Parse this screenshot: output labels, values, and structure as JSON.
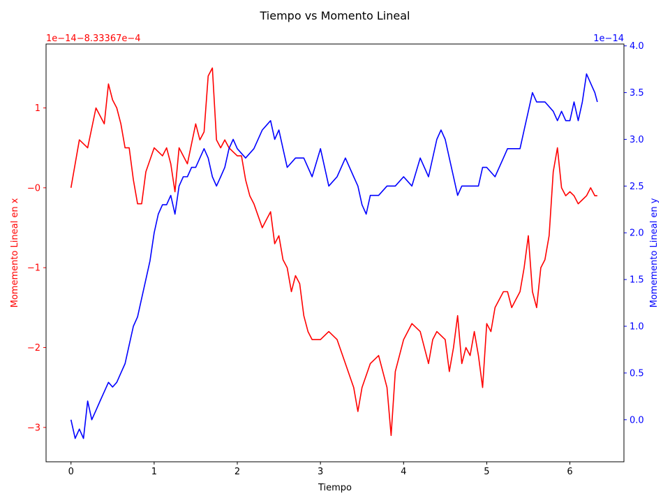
{
  "chart_data": {
    "type": "line",
    "title": "Tiempo vs Momento Lineal",
    "xlabel": "Tiempo",
    "xlim": [
      -0.3,
      6.65
    ],
    "x_ticks": [
      0,
      1,
      2,
      3,
      4,
      5,
      6
    ],
    "x_tick_labels": [
      "0",
      "1",
      "2",
      "3",
      "4",
      "5",
      "6"
    ],
    "grid": false,
    "axes": {
      "left": {
        "label": "Momemento Lineal en x",
        "color": "#ff0000",
        "offset_text": "1e−14−8.33367e−4",
        "ylim": [
          -3.43,
          1.8
        ],
        "ticks": [
          -3,
          -2,
          -1,
          0,
          1
        ],
        "tick_labels": [
          "−3",
          "−2",
          "−1",
          "−0",
          "1"
        ]
      },
      "right": {
        "label": "Momemento Lineal en y",
        "color": "#0000ff",
        "offset_text": "1e−14",
        "ylim": [
          -0.45,
          4.02
        ],
        "ticks": [
          0.0,
          0.5,
          1.0,
          1.5,
          2.0,
          2.5,
          3.0,
          3.5,
          4.0
        ],
        "tick_labels": [
          "0.0",
          "0.5",
          "1.0",
          "1.5",
          "2.0",
          "2.5",
          "3.0",
          "3.5",
          "4.0"
        ]
      }
    },
    "series": [
      {
        "axis": "left",
        "color": "#ff0000",
        "x": [
          0,
          0.1,
          0.2,
          0.3,
          0.4,
          0.45,
          0.5,
          0.55,
          0.6,
          0.65,
          0.7,
          0.75,
          0.8,
          0.85,
          0.9,
          1.0,
          1.1,
          1.15,
          1.2,
          1.25,
          1.3,
          1.4,
          1.5,
          1.55,
          1.6,
          1.65,
          1.7,
          1.75,
          1.8,
          1.85,
          1.9,
          1.95,
          2.0,
          2.05,
          2.1,
          2.15,
          2.2,
          2.3,
          2.35,
          2.4,
          2.45,
          2.5,
          2.55,
          2.6,
          2.65,
          2.7,
          2.75,
          2.8,
          2.85,
          2.9,
          3.0,
          3.1,
          3.2,
          3.3,
          3.4,
          3.45,
          3.5,
          3.6,
          3.7,
          3.75,
          3.8,
          3.85,
          3.9,
          4.0,
          4.1,
          4.2,
          4.3,
          4.35,
          4.4,
          4.5,
          4.55,
          4.6,
          4.65,
          4.7,
          4.75,
          4.8,
          4.85,
          4.9,
          4.95,
          5.0,
          5.05,
          5.1,
          5.15,
          5.2,
          5.25,
          5.3,
          5.35,
          5.4,
          5.45,
          5.5,
          5.55,
          5.6,
          5.65,
          5.7,
          5.75,
          5.8,
          5.85,
          5.9,
          5.95,
          6.0,
          6.05,
          6.1,
          6.15,
          6.2,
          6.25,
          6.3,
          6.33
        ],
        "y": [
          0.0,
          0.6,
          0.5,
          1.0,
          0.8,
          1.3,
          1.1,
          1.0,
          0.8,
          0.5,
          0.5,
          0.1,
          -0.2,
          -0.2,
          0.2,
          0.5,
          0.4,
          0.5,
          0.3,
          -0.05,
          0.5,
          0.3,
          0.8,
          0.6,
          0.7,
          1.4,
          1.5,
          0.6,
          0.5,
          0.6,
          0.5,
          0.45,
          0.4,
          0.4,
          0.1,
          -0.1,
          -0.2,
          -0.5,
          -0.4,
          -0.3,
          -0.7,
          -0.6,
          -0.9,
          -1.0,
          -1.3,
          -1.1,
          -1.2,
          -1.6,
          -1.8,
          -1.9,
          -1.9,
          -1.8,
          -1.9,
          -2.2,
          -2.5,
          -2.8,
          -2.5,
          -2.2,
          -2.1,
          -2.3,
          -2.5,
          -3.1,
          -2.3,
          -1.9,
          -1.7,
          -1.8,
          -2.2,
          -1.9,
          -1.8,
          -1.9,
          -2.3,
          -2.0,
          -1.6,
          -2.2,
          -2.0,
          -2.1,
          -1.8,
          -2.1,
          -2.5,
          -1.7,
          -1.8,
          -1.5,
          -1.4,
          -1.3,
          -1.3,
          -1.5,
          -1.4,
          -1.3,
          -1.0,
          -0.6,
          -1.3,
          -1.5,
          -1.0,
          -0.9,
          -0.6,
          0.2,
          0.5,
          0.0,
          -0.1,
          -0.05,
          -0.1,
          -0.2,
          -0.15,
          -0.1,
          0.0,
          -0.1,
          -0.1
        ]
      },
      {
        "axis": "right",
        "color": "#0000ff",
        "x": [
          0,
          0.05,
          0.1,
          0.15,
          0.2,
          0.25,
          0.3,
          0.35,
          0.4,
          0.45,
          0.5,
          0.55,
          0.6,
          0.65,
          0.7,
          0.75,
          0.8,
          0.85,
          0.9,
          0.95,
          1.0,
          1.05,
          1.1,
          1.15,
          1.2,
          1.25,
          1.3,
          1.35,
          1.4,
          1.45,
          1.5,
          1.55,
          1.6,
          1.65,
          1.7,
          1.75,
          1.8,
          1.85,
          1.9,
          1.95,
          2.0,
          2.1,
          2.2,
          2.3,
          2.4,
          2.45,
          2.5,
          2.55,
          2.6,
          2.7,
          2.8,
          2.9,
          3.0,
          3.1,
          3.2,
          3.3,
          3.4,
          3.45,
          3.5,
          3.55,
          3.6,
          3.7,
          3.8,
          3.9,
          4.0,
          4.1,
          4.2,
          4.3,
          4.4,
          4.45,
          4.5,
          4.55,
          4.6,
          4.65,
          4.7,
          4.8,
          4.9,
          4.95,
          5.0,
          5.1,
          5.2,
          5.25,
          5.3,
          5.4,
          5.45,
          5.5,
          5.55,
          5.6,
          5.7,
          5.8,
          5.85,
          5.9,
          5.95,
          6.0,
          6.05,
          6.1,
          6.15,
          6.2,
          6.25,
          6.3,
          6.33
        ],
        "y": [
          0.0,
          -0.2,
          -0.1,
          -0.2,
          0.2,
          0.0,
          0.1,
          0.2,
          0.3,
          0.4,
          0.35,
          0.4,
          0.5,
          0.6,
          0.8,
          1.0,
          1.1,
          1.3,
          1.5,
          1.7,
          2.0,
          2.2,
          2.3,
          2.3,
          2.4,
          2.2,
          2.5,
          2.6,
          2.6,
          2.7,
          2.7,
          2.8,
          2.9,
          2.8,
          2.6,
          2.5,
          2.6,
          2.7,
          2.9,
          3.0,
          2.9,
          2.8,
          2.9,
          3.1,
          3.2,
          3.0,
          3.1,
          2.9,
          2.7,
          2.8,
          2.8,
          2.6,
          2.9,
          2.5,
          2.6,
          2.8,
          2.6,
          2.5,
          2.3,
          2.2,
          2.4,
          2.4,
          2.5,
          2.5,
          2.6,
          2.5,
          2.8,
          2.6,
          3.0,
          3.1,
          3.0,
          2.8,
          2.6,
          2.4,
          2.5,
          2.5,
          2.5,
          2.7,
          2.7,
          2.6,
          2.8,
          2.9,
          2.9,
          2.9,
          3.1,
          3.3,
          3.5,
          3.4,
          3.4,
          3.3,
          3.2,
          3.3,
          3.2,
          3.2,
          3.4,
          3.2,
          3.4,
          3.7,
          3.6,
          3.5,
          3.4
        ]
      }
    ]
  }
}
